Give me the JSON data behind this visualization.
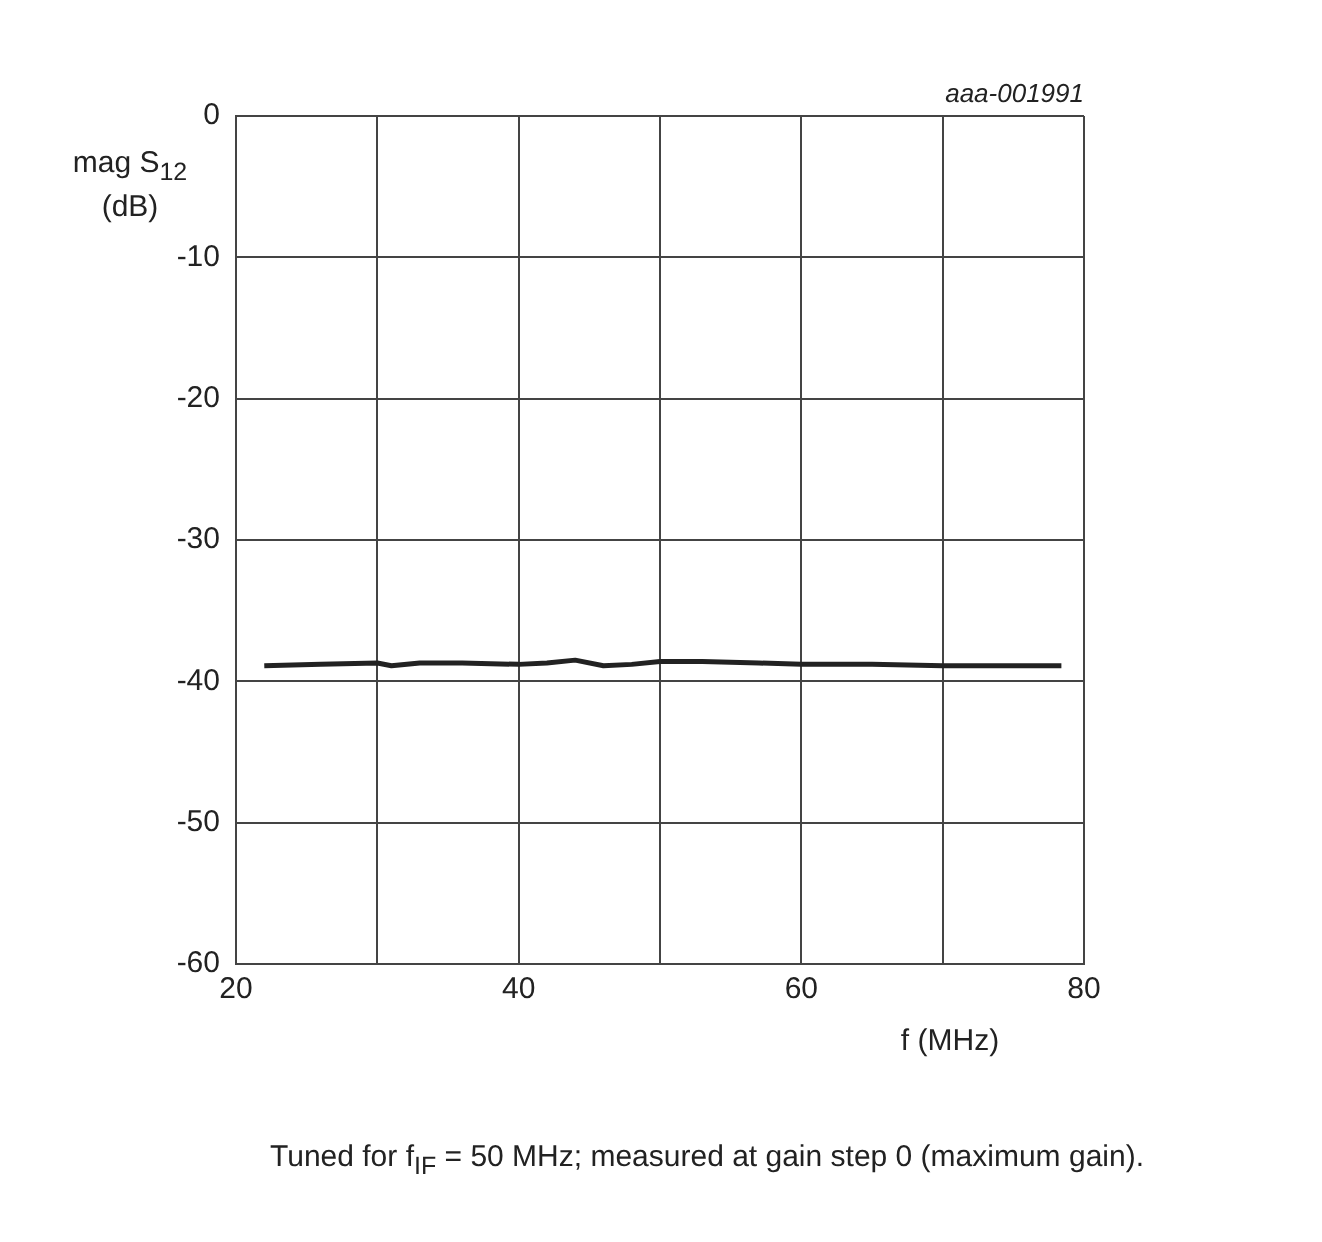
{
  "chart_data": {
    "type": "line",
    "xlabel": "f (MHz)",
    "ylabel": "mag S$_{12}$ (dB)",
    "annotations": [
      "aaa-001991",
      "Tuned for f$_{IF}$ = 50 MHz; measured at gain step 0 (maximum gain)."
    ],
    "series": [
      {
        "color": "#222222",
        "x": [
          22,
          26,
          30,
          31,
          33,
          36,
          40,
          42,
          44,
          46,
          48,
          50,
          53,
          57,
          60,
          65,
          70,
          75,
          78.4
        ],
        "values": [
          -38.9,
          -38.8,
          -38.7,
          -38.9,
          -38.7,
          -38.7,
          -38.8,
          -38.7,
          -38.5,
          -38.9,
          -38.8,
          -38.6,
          -38.6,
          -38.7,
          -38.8,
          -38.8,
          -38.9,
          -38.9,
          -38.9
        ]
      }
    ],
    "xlim": [
      20,
      80
    ],
    "xticks": [
      20,
      {
        "value": 30,
        "label": null
      },
      40,
      {
        "value": 50,
        "label": null
      },
      60,
      {
        "value": 70,
        "label": null
      },
      80
    ],
    "ylim": [
      -60,
      0
    ],
    "yticks": [
      0,
      -10,
      -20,
      -30,
      -40,
      -50,
      -60
    ],
    "grid": true,
    "legend": false,
    "marker": "none",
    "line_style": "solid"
  }
}
